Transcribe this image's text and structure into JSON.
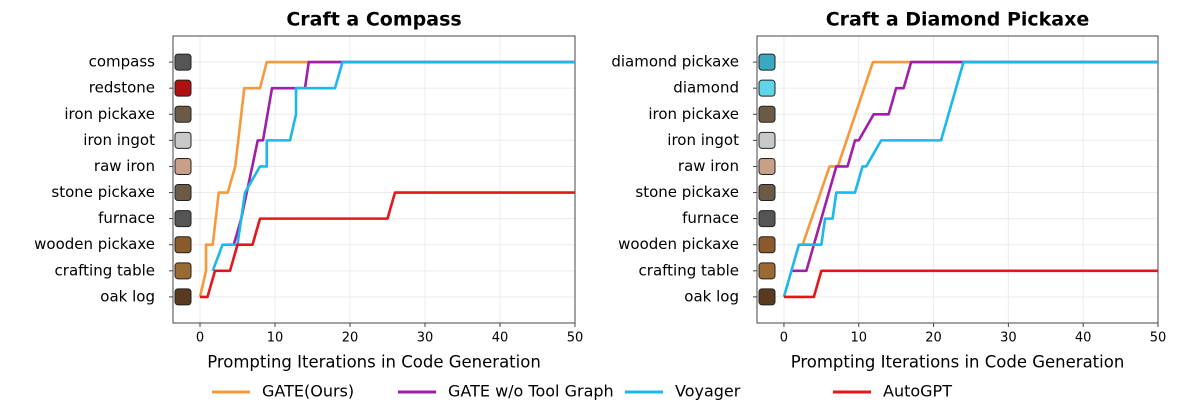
{
  "chart_data": [
    {
      "type": "line",
      "title": "Craft a Compass",
      "xlabel": "Prompting Iterations in Code Generation",
      "categories": [
        "oak log",
        "crafting table",
        "wooden pickaxe",
        "furnace",
        "stone pickaxe",
        "raw iron",
        "iron ingot",
        "iron pickaxe",
        "redstone",
        "compass"
      ],
      "xlim": [
        -3.6,
        50
      ],
      "xticks": [
        0,
        10,
        20,
        30,
        40,
        50
      ],
      "ylim": [
        -1,
        10
      ],
      "grid": true,
      "series": [
        {
          "name": "GATE(Ours)",
          "color": "#f7993a",
          "x": [
            0,
            0.8,
            0.8,
            1.7,
            2.5,
            3.7,
            4.7,
            5.9,
            8,
            8.9,
            50
          ],
          "values": [
            0,
            1,
            2,
            2,
            4,
            4,
            5,
            8,
            8,
            9,
            9
          ]
        },
        {
          "name": "GATE w/o Tool Graph",
          "color": "#a01eaa",
          "x": [
            4.5,
            5.5,
            7.7,
            8.4,
            9.6,
            14,
            14.5,
            50
          ],
          "values": [
            2,
            3,
            6,
            6,
            8,
            8,
            9,
            9
          ]
        },
        {
          "name": "Voyager",
          "color": "#1ab8ec",
          "x": [
            1.7,
            3,
            5,
            6,
            8,
            8.9,
            8.9,
            12,
            12.8,
            12.8,
            18,
            19,
            50
          ],
          "values": [
            1,
            2,
            2,
            4,
            5,
            5,
            6,
            6,
            7,
            8,
            8,
            9,
            9
          ]
        },
        {
          "name": "AutoGPT",
          "color": "#e8141a",
          "x": [
            0,
            1,
            2,
            4,
            5,
            7,
            8,
            25,
            26,
            50
          ],
          "values": [
            0,
            0,
            1,
            1,
            2,
            2,
            3,
            3,
            4,
            4
          ]
        }
      ]
    },
    {
      "type": "line",
      "title": "Craft a Diamond Pickaxe",
      "xlabel": "Prompting Iterations in Code Generation",
      "categories": [
        "oak log",
        "crafting table",
        "wooden pickaxe",
        "furnace",
        "stone pickaxe",
        "raw iron",
        "iron ingot",
        "iron pickaxe",
        "diamond",
        "diamond pickaxe"
      ],
      "xlim": [
        -3.6,
        50
      ],
      "xticks": [
        0,
        10,
        20,
        30,
        40,
        50
      ],
      "ylim": [
        -1,
        10
      ],
      "grid": true,
      "series": [
        {
          "name": "GATE(Ours)",
          "color": "#f7993a",
          "x": [
            2.5,
            6.1,
            7.2,
            11.9,
            50
          ],
          "values": [
            2,
            5,
            5,
            9,
            9
          ]
        },
        {
          "name": "GATE w/o Tool Graph",
          "color": "#a01eaa",
          "x": [
            1,
            3,
            5,
            7,
            8.5,
            9.5,
            10,
            12,
            14,
            15,
            16,
            17,
            50
          ],
          "values": [
            1,
            1,
            3,
            5,
            5,
            6,
            6,
            7,
            7,
            8,
            8,
            9,
            9
          ]
        },
        {
          "name": "Voyager",
          "color": "#1ab8ec",
          "x": [
            0,
            2,
            5,
            5.5,
            6.5,
            7,
            9.5,
            10.5,
            11,
            13,
            21,
            24,
            50
          ],
          "values": [
            0,
            2,
            2,
            3,
            3,
            4,
            4,
            5,
            5,
            6,
            6,
            9,
            9
          ]
        },
        {
          "name": "AutoGPT",
          "color": "#e8141a",
          "x": [
            0,
            4,
            5,
            50
          ],
          "values": [
            0,
            0,
            1,
            1
          ]
        }
      ]
    }
  ]
}
